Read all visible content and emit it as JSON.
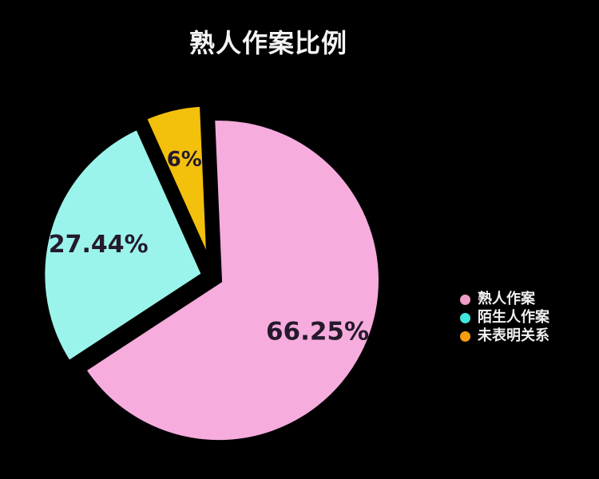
{
  "colors": {
    "background": "#000000",
    "title_text": "#f5f5f5",
    "slice_label_text": "#241a2b",
    "legend_text": "#f0f0f0"
  },
  "chart_data": {
    "type": "pie",
    "title": "熟人作案比例",
    "legend_position": "right",
    "start_angle_deg": -2.5,
    "slices": [
      {
        "label": "熟人作案",
        "value": 66.25,
        "display": "66.25%",
        "color": "#f6acdd",
        "legend_color": "#ee9dc8"
      },
      {
        "label": "陌生人作案",
        "value": 27.44,
        "display": "27.44%",
        "color": "#9bf4eb",
        "legend_color": "#3ee9dd"
      },
      {
        "label": "未表明关系",
        "value": 6,
        "display": "6%",
        "color": "#f3c00c",
        "legend_color": "#f59d0c"
      }
    ]
  }
}
